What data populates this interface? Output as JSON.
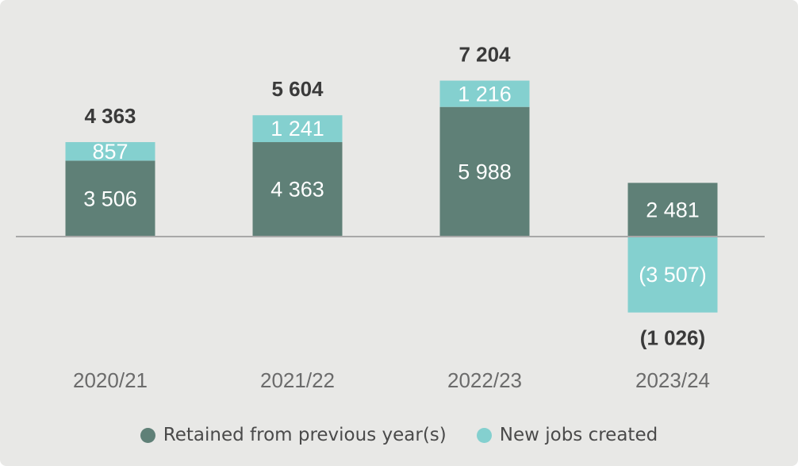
{
  "chart_data": {
    "type": "bar",
    "stacked": true,
    "categories": [
      "2020/21",
      "2021/22",
      "2022/23",
      "2023/24"
    ],
    "series": [
      {
        "name": "Retained from previous year(s)",
        "color": "#5f8077",
        "values": [
          3506,
          4363,
          5988,
          2481
        ],
        "labels": [
          "3 506",
          "4 363",
          "5 988",
          "2 481"
        ]
      },
      {
        "name": "New jobs created",
        "color": "#84d0cf",
        "values": [
          857,
          1241,
          1216,
          -3507
        ],
        "labels": [
          "857",
          "1 241",
          "1 216",
          "(3 507)"
        ]
      }
    ],
    "totals": [
      4363,
      5604,
      7204,
      -1026
    ],
    "total_labels": [
      "4 363",
      "5 604",
      "7 204",
      "(1 026)"
    ],
    "ylim": [
      -4400,
      8000
    ],
    "baseline_color": "#a8a8a8",
    "legend_position": "bottom",
    "grid": false
  }
}
